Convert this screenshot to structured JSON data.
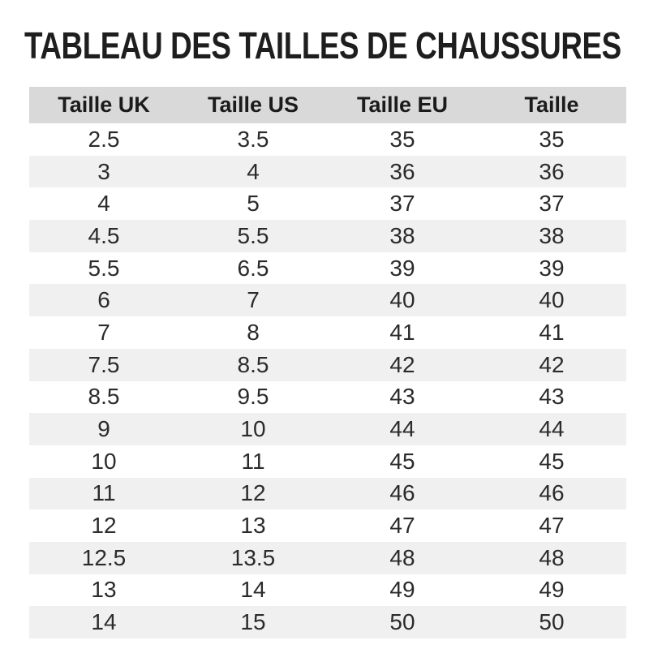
{
  "title": "TABLEAU DES TAILLES DE CHAUSSURES",
  "colors": {
    "page_bg": "#ffffff",
    "title_text": "#1e1e1e",
    "header_bg": "#d9d9d9",
    "header_text": "#1b1b1b",
    "row_bg": "#ffffff",
    "stripe_bg": "#f0f0f0",
    "cell_text": "#2b2b2b"
  },
  "chart_data": {
    "type": "table",
    "title": "TABLEAU DES TAILLES DE CHAUSSURES",
    "columns": [
      "Taille UK",
      "Taille US",
      "Taille EU",
      "Taille"
    ],
    "rows": [
      [
        "2.5",
        "3.5",
        "35",
        "35"
      ],
      [
        "3",
        "4",
        "36",
        "36"
      ],
      [
        "4",
        "5",
        "37",
        "37"
      ],
      [
        "4.5",
        "5.5",
        "38",
        "38"
      ],
      [
        "5.5",
        "6.5",
        "39",
        "39"
      ],
      [
        "6",
        "7",
        "40",
        "40"
      ],
      [
        "7",
        "8",
        "41",
        "41"
      ],
      [
        "7.5",
        "8.5",
        "42",
        "42"
      ],
      [
        "8.5",
        "9.5",
        "43",
        "43"
      ],
      [
        "9",
        "10",
        "44",
        "44"
      ],
      [
        "10",
        "11",
        "45",
        "45"
      ],
      [
        "11",
        "12",
        "46",
        "46"
      ],
      [
        "12",
        "13",
        "47",
        "47"
      ],
      [
        "12.5",
        "13.5",
        "48",
        "48"
      ],
      [
        "13",
        "14",
        "49",
        "49"
      ],
      [
        "14",
        "15",
        "50",
        "50"
      ]
    ],
    "layout": {
      "zebra_striping": true,
      "striped_rows": "even",
      "header_background": "#d9d9d9",
      "grid": false
    }
  }
}
